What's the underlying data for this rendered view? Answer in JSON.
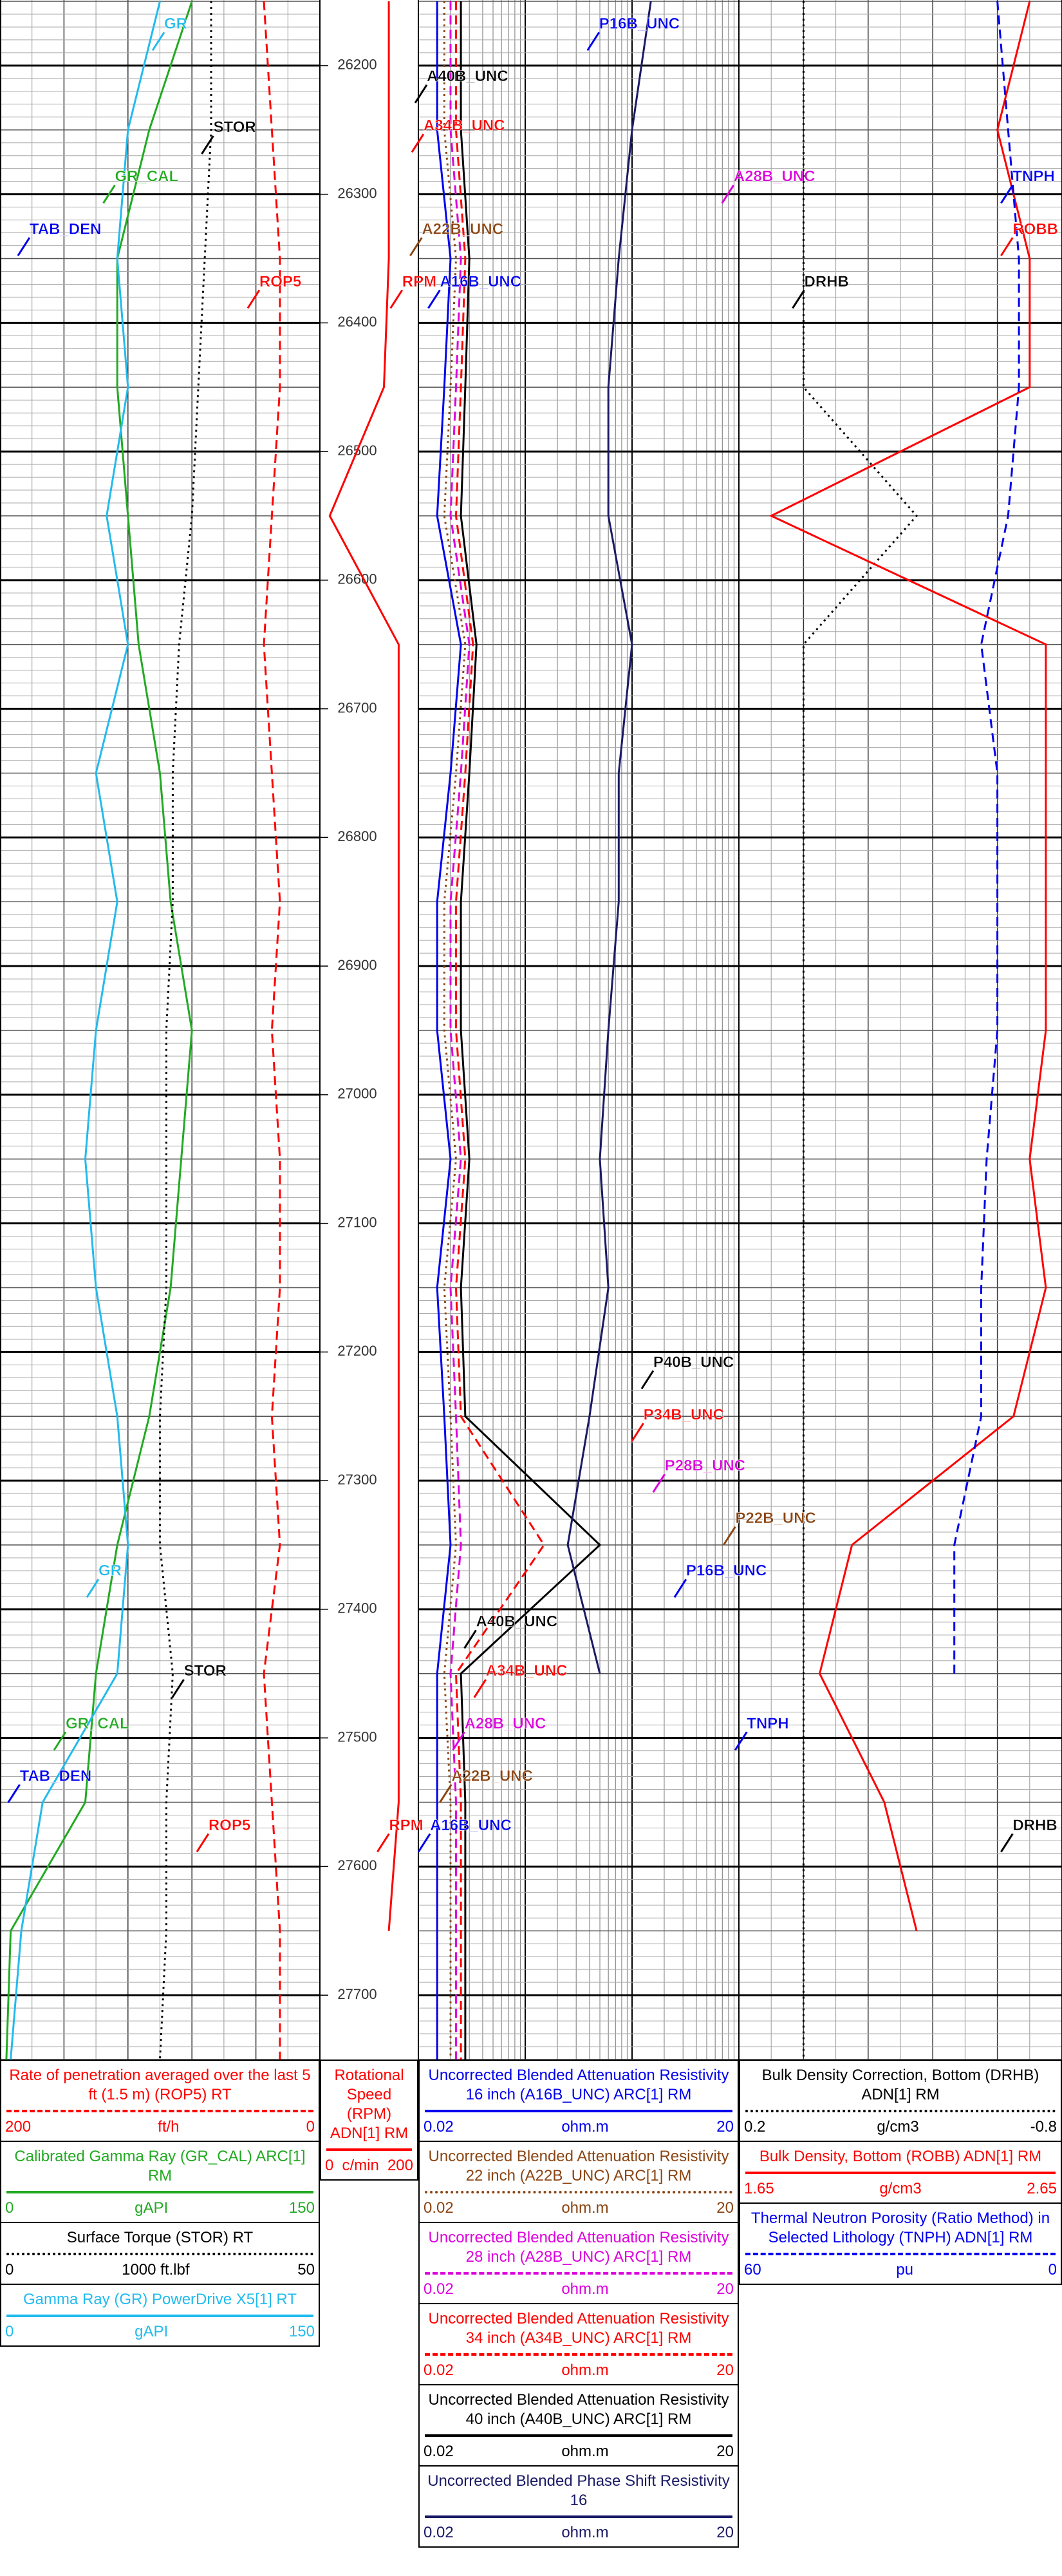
{
  "chart_data": {
    "type": "well-log",
    "ylim": [
      26149,
      27751
    ],
    "depth_ticks": [
      26200,
      26300,
      26400,
      26500,
      26600,
      26700,
      26800,
      26900,
      27000,
      27100,
      27200,
      27300,
      27400,
      27500,
      27600,
      27700
    ],
    "depths": [
      26150,
      26250,
      26350,
      26450,
      26550,
      26650,
      26750,
      26850,
      26950,
      27050,
      27150,
      27250,
      27350,
      27450,
      27550,
      27650,
      27750
    ],
    "tracks": [
      {
        "log": false,
        "curves": [
          {
            "name": "Rate of penetration averaged over the last 5 ft (1.5 m) (ROP5) RT",
            "color": "#ff0000",
            "style": "dashed",
            "scale": [
              200,
              0
            ],
            "unit": "ft/h",
            "values": [
              35,
              30,
              25,
              25,
              30,
              35,
              30,
              25,
              30,
              25,
              25,
              30,
              25,
              35,
              30,
              25,
              25
            ]
          },
          {
            "name": "Calibrated Gamma Ray (GR_CAL) ARC[1] RM",
            "color": "#22aa22",
            "style": "solid",
            "scale": [
              0,
              150
            ],
            "unit": "gAPI",
            "values": [
              90,
              70,
              55,
              55,
              60,
              65,
              75,
              80,
              90,
              85,
              80,
              70,
              55,
              45,
              40,
              5,
              3
            ]
          },
          {
            "name": "Surface Torque (STOR) RT",
            "color": "#000000",
            "style": "dotted",
            "scale": [
              0,
              50
            ],
            "unit": "1000 ft.lbf",
            "values": [
              33,
              33,
              32,
              31,
              30,
              28,
              27,
              27,
              26,
              26,
              26,
              25,
              25,
              27,
              26,
              26,
              25
            ]
          },
          {
            "name": "Gamma Ray (GR) PowerDrive X5[1] RT",
            "color": "#22bbee",
            "style": "solid",
            "scale": [
              0,
              150
            ],
            "unit": "gAPI",
            "values": [
              75,
              60,
              55,
              60,
              50,
              60,
              45,
              55,
              45,
              40,
              45,
              55,
              60,
              55,
              20,
              10,
              5
            ]
          }
        ]
      },
      {
        "log": false,
        "curves": [
          {
            "name": "Rotational Speed (RPM) ADN[1] RM",
            "color": "#ff0000",
            "style": "solid",
            "scale": [
              0,
              200
            ],
            "unit": "c/min",
            "values": [
              140,
              140,
              140,
              130,
              20,
              160,
              160,
              160,
              160,
              160,
              160,
              160,
              160,
              160,
              160,
              140,
              null
            ]
          }
        ]
      },
      {
        "log": true,
        "scale": [
          0.02,
          20
        ],
        "unit": "ohm.m",
        "curves": [
          {
            "name": "Uncorrected Blended Attenuation Resistivity 16 inch (A16B_UNC) ARC[1] RM",
            "color": "#0000ee",
            "style": "solid",
            "values": [
              0.03,
              0.03,
              0.04,
              0.035,
              0.03,
              0.05,
              0.04,
              0.03,
              0.03,
              0.04,
              0.03,
              0.035,
              0.04,
              0.03,
              0.03,
              0.03,
              0.03
            ]
          },
          {
            "name": "Uncorrected Blended Attenuation Resistivity 22 inch (A22B_UNC) ARC[1] RM",
            "color": "#8b4513",
            "style": "dotted",
            "values": [
              0.035,
              0.035,
              0.045,
              0.04,
              0.035,
              0.055,
              0.045,
              0.035,
              0.035,
              0.045,
              0.035,
              0.04,
              0.045,
              0.035,
              0.04,
              0.04,
              0.04
            ]
          },
          {
            "name": "Uncorrected Blended Attenuation Resistivity 28 inch (A28B_UNC) ARC[1] RM",
            "color": "#dd00dd",
            "style": "dashed",
            "values": [
              0.04,
              0.04,
              0.05,
              0.045,
              0.04,
              0.06,
              0.05,
              0.04,
              0.04,
              0.05,
              0.04,
              0.045,
              0.05,
              0.04,
              0.045,
              0.045,
              0.045
            ]
          },
          {
            "name": "Uncorrected Blended Attenuation Resistivity 34 inch (A34B_UNC) ARC[1] RM",
            "color": "#ff0000",
            "style": "dashed",
            "values": [
              0.045,
              0.045,
              0.055,
              0.05,
              0.045,
              0.065,
              0.055,
              0.045,
              0.045,
              0.055,
              0.045,
              0.05,
              0.3,
              0.045,
              0.05,
              0.05,
              0.05
            ]
          },
          {
            "name": "Uncorrected Blended Attenuation Resistivity 40 inch (A40B_UNC) ARC[1] RM",
            "color": "#000000",
            "style": "solid",
            "values": [
              0.05,
              0.05,
              0.06,
              0.055,
              0.05,
              0.07,
              0.06,
              0.05,
              0.05,
              0.06,
              0.05,
              0.055,
              1.0,
              0.05,
              0.055,
              0.055,
              0.055
            ]
          },
          {
            "name": "Uncorrected Blended Phase Shift Resistivity 16",
            "color": "#1a1a66",
            "style": "solid",
            "values": [
              3,
              2,
              1.5,
              1.2,
              1.2,
              2,
              1.5,
              1.5,
              1.2,
              1,
              1.2,
              0.8,
              0.5,
              1,
              null,
              null,
              null
            ]
          }
        ]
      },
      {
        "log": false,
        "curves": [
          {
            "name": "Bulk Density Correction, Bottom (DRHB) ADN[1] RM",
            "color": "#000000",
            "style": "dotted",
            "scale": [
              0.2,
              -0.8
            ],
            "unit": "g/cm3",
            "values": [
              0.0,
              0.0,
              0.0,
              0.0,
              -0.35,
              0.0,
              0.0,
              0.0,
              0.0,
              0.0,
              0.0,
              0.0,
              0.0,
              0.0,
              0.0,
              0.0,
              0.0
            ]
          },
          {
            "name": "Bulk Density, Bottom (ROBB) ADN[1] RM",
            "color": "#ff0000",
            "style": "solid",
            "scale": [
              1.65,
              2.65
            ],
            "unit": "g/cm3",
            "values": [
              2.55,
              2.45,
              2.55,
              2.55,
              1.75,
              2.6,
              2.6,
              2.6,
              2.6,
              2.55,
              2.6,
              2.5,
              2.0,
              1.9,
              2.1,
              2.2,
              null
            ]
          },
          {
            "name": "Thermal Neutron Porosity (Ratio Method) in Selected Lithology (TNPH) ADN[1] RM",
            "color": "#0000ee",
            "style": "dashed",
            "scale": [
              60,
              0
            ],
            "unit": "pu",
            "values": [
              12,
              10,
              8,
              8,
              10,
              15,
              12,
              12,
              12,
              14,
              15,
              15,
              20,
              20,
              null,
              null,
              null
            ]
          }
        ]
      }
    ],
    "annotations": [
      {
        "text": "GR",
        "color": "#22bbee"
      },
      {
        "text": "STOR",
        "color": "#000000"
      },
      {
        "text": "GR_CAL",
        "color": "#22aa22"
      },
      {
        "text": "TAB_DEN",
        "color": "#0000ee"
      },
      {
        "text": "ROP5",
        "color": "#ff0000"
      },
      {
        "text": "RPM",
        "color": "#ff0000"
      },
      {
        "text": "A40B_UNC",
        "color": "#000000"
      },
      {
        "text": "A34B_UNC",
        "color": "#ff0000"
      },
      {
        "text": "A22B_UNC",
        "color": "#8b4513"
      },
      {
        "text": "A16B_UNC",
        "color": "#0000ee"
      },
      {
        "text": "P16B_UNC",
        "color": "#0000ee"
      },
      {
        "text": "A28B_UNC",
        "color": "#dd00dd"
      },
      {
        "text": "DRHB",
        "color": "#000000"
      },
      {
        "text": "TNPH",
        "color": "#0000ee"
      },
      {
        "text": "ROBB",
        "color": "#ff0000"
      },
      {
        "text": "GR",
        "color": "#22bbee"
      },
      {
        "text": "STOR",
        "color": "#000000"
      },
      {
        "text": "GR_CAL",
        "color": "#22aa22"
      },
      {
        "text": "TAB_DEN",
        "color": "#0000ee"
      },
      {
        "text": "ROP5",
        "color": "#ff0000"
      },
      {
        "text": "RPM",
        "color": "#ff0000"
      },
      {
        "text": "A40B_UNC",
        "color": "#000000"
      },
      {
        "text": "A34B_UNC",
        "color": "#ff0000"
      },
      {
        "text": "A28B_UNC",
        "color": "#dd00dd"
      },
      {
        "text": "A22B_UNC",
        "color": "#8b4513"
      },
      {
        "text": "A16B_UNC",
        "color": "#0000ee"
      },
      {
        "text": "P40B_UNC",
        "color": "#000000"
      },
      {
        "text": "P34B_UNC",
        "color": "#ff0000"
      },
      {
        "text": "P28B_UNC",
        "color": "#dd00dd"
      },
      {
        "text": "P22B_UNC",
        "color": "#8b4513"
      },
      {
        "text": "P16B_UNC",
        "color": "#0000ee"
      },
      {
        "text": "TNPH",
        "color": "#0000ee"
      },
      {
        "text": "DRHB",
        "color": "#000000"
      }
    ]
  }
}
